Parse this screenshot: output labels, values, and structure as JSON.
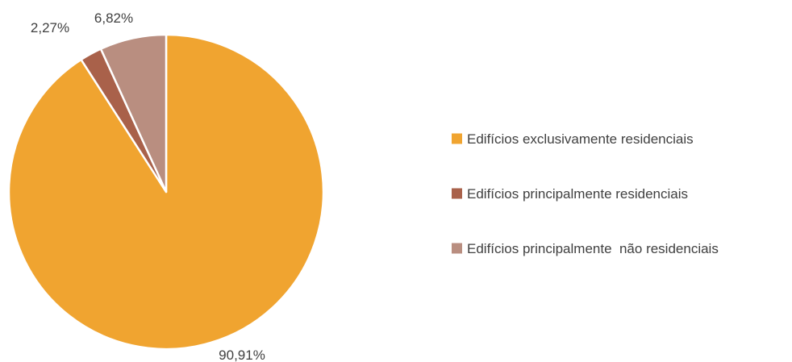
{
  "chart_data": {
    "type": "pie",
    "title": "",
    "categories": [
      "Edifícios exclusivamente residenciais",
      "Edifícios principalmente residenciais",
      "Edifícios principalmente  não residenciais"
    ],
    "values": [
      90.91,
      2.27,
      6.82
    ],
    "data_labels": [
      "90,91%",
      "2,27%",
      "6,82%"
    ],
    "colors": [
      "#F0A430",
      "#A9614A",
      "#B98E80"
    ],
    "start_angle_deg": 0,
    "direction": "clockwise",
    "legend_position": "right"
  }
}
